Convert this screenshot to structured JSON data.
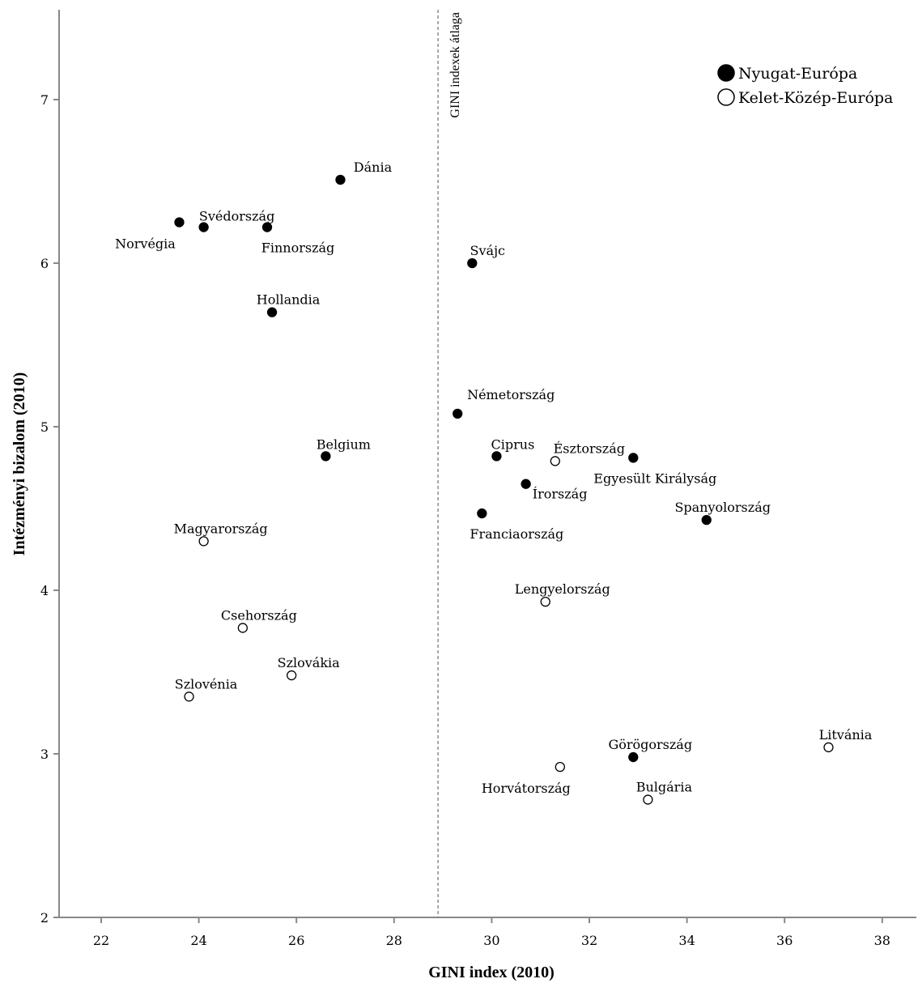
{
  "chart_data": {
    "type": "scatter",
    "title": "",
    "xlabel": "GINI index (2010)",
    "ylabel": "Intézményi bizalom (2010)",
    "xlim": [
      21,
      38.8
    ],
    "ylim": [
      2,
      7.55
    ],
    "xticks": [
      22,
      24,
      26,
      28,
      30,
      32,
      34,
      36,
      38
    ],
    "yticks": [
      2,
      3,
      4,
      5,
      6,
      7
    ],
    "grid": false,
    "legend_position": "top-right",
    "reference_line": {
      "x": 28.9,
      "label": "GINI indexek átlaga"
    },
    "series": [
      {
        "name": "Nyugat-Európa",
        "marker": "filled",
        "color": "#000000",
        "points": [
          {
            "label": "Dánia",
            "x": 26.9,
            "y": 6.51
          },
          {
            "label": "Norvégia",
            "x": 23.6,
            "y": 6.25
          },
          {
            "label": "Svédország",
            "x": 24.1,
            "y": 6.22
          },
          {
            "label": "Finnország",
            "x": 25.4,
            "y": 6.22
          },
          {
            "label": "Svájc",
            "x": 29.6,
            "y": 6.0
          },
          {
            "label": "Hollandia",
            "x": 25.5,
            "y": 5.7
          },
          {
            "label": "Németország",
            "x": 29.3,
            "y": 5.08
          },
          {
            "label": "Belgium",
            "x": 26.6,
            "y": 4.82
          },
          {
            "label": "Ciprus",
            "x": 30.1,
            "y": 4.82
          },
          {
            "label": "Egyesült Királyság",
            "x": 32.9,
            "y": 4.81
          },
          {
            "label": "Írország",
            "x": 30.7,
            "y": 4.65
          },
          {
            "label": "Franciaország",
            "x": 29.8,
            "y": 4.47
          },
          {
            "label": "Spanyolország",
            "x": 34.4,
            "y": 4.43
          },
          {
            "label": "Görögország",
            "x": 32.9,
            "y": 2.98
          }
        ]
      },
      {
        "name": "Kelet-Közép-Európa",
        "marker": "hollow",
        "color": "#000000",
        "points": [
          {
            "label": "Észtország",
            "x": 31.3,
            "y": 4.79
          },
          {
            "label": "Magyarország",
            "x": 24.1,
            "y": 4.3
          },
          {
            "label": "Lengyelország",
            "x": 31.1,
            "y": 3.93
          },
          {
            "label": "Csehország",
            "x": 24.9,
            "y": 3.77
          },
          {
            "label": "Szlovákia",
            "x": 25.9,
            "y": 3.48
          },
          {
            "label": "Szlovénia",
            "x": 23.8,
            "y": 3.35
          },
          {
            "label": "Litvánia",
            "x": 36.9,
            "y": 3.04
          },
          {
            "label": "Horvátország",
            "x": 31.4,
            "y": 2.92
          },
          {
            "label": "Bulgária",
            "x": 33.2,
            "y": 2.72
          }
        ]
      }
    ]
  }
}
